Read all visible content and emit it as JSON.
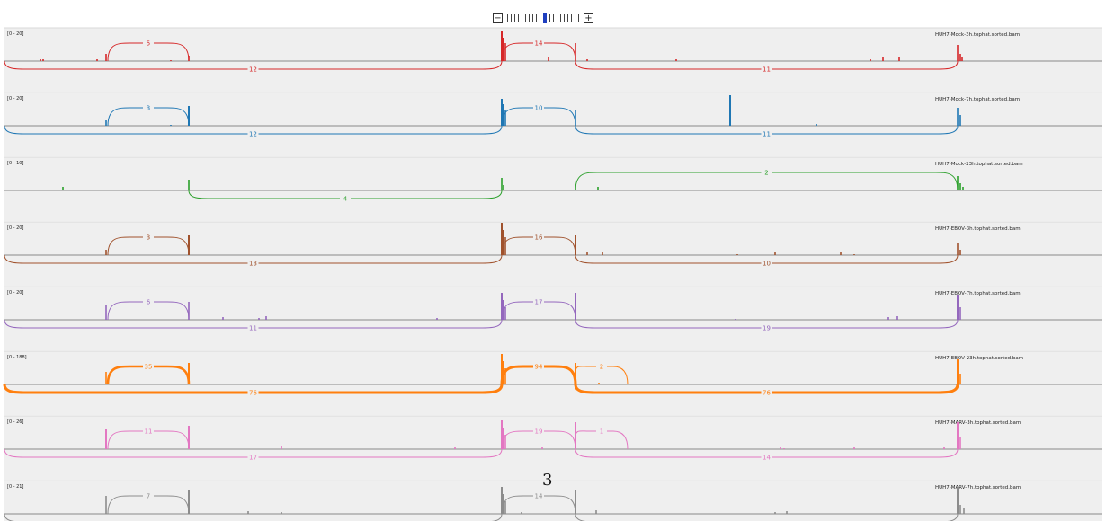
{
  "zoom": {
    "minus_label": "−",
    "plus_label": "+",
    "tick_count": 20,
    "active_tick": 10
  },
  "page_number": "3",
  "tracks": [
    {
      "name": "HUH7-Mock-3h.tophat.sorted.bam",
      "range": "[0 - 20]",
      "color": "#d62728",
      "junctions": [
        {
          "from": 120,
          "to": 210,
          "count": "5",
          "side": "up",
          "weight": 1
        },
        {
          "from": 5,
          "to": 558,
          "count": "12",
          "side": "down",
          "weight": 1
        },
        {
          "from": 558,
          "to": 640,
          "count": "14",
          "side": "up",
          "weight": 1
        },
        {
          "from": 640,
          "to": 1065,
          "count": "11",
          "side": "down",
          "weight": 1
        }
      ],
      "bars": [
        [
          45,
          2
        ],
        [
          48,
          2
        ],
        [
          108,
          2
        ],
        [
          118,
          8
        ],
        [
          190,
          1
        ],
        [
          210,
          6
        ],
        [
          558,
          34
        ],
        [
          560,
          26
        ],
        [
          562,
          20
        ],
        [
          610,
          4
        ],
        [
          640,
          20
        ],
        [
          653,
          2
        ],
        [
          752,
          2
        ],
        [
          968,
          2
        ],
        [
          982,
          4
        ],
        [
          1000,
          5
        ],
        [
          1065,
          18
        ],
        [
          1068,
          8
        ],
        [
          1070,
          4
        ]
      ]
    },
    {
      "name": "HUH7-Mock-7h.tophat.sorted.bam",
      "range": "[0 - 20]",
      "color": "#1f77b4",
      "junctions": [
        {
          "from": 120,
          "to": 210,
          "count": "3",
          "side": "up",
          "weight": 1
        },
        {
          "from": 5,
          "to": 558,
          "count": "12",
          "side": "down",
          "weight": 1
        },
        {
          "from": 558,
          "to": 640,
          "count": "10",
          "side": "up",
          "weight": 1
        },
        {
          "from": 640,
          "to": 1065,
          "count": "11",
          "side": "down",
          "weight": 1
        }
      ],
      "bars": [
        [
          118,
          6
        ],
        [
          190,
          1
        ],
        [
          210,
          22
        ],
        [
          558,
          30
        ],
        [
          560,
          24
        ],
        [
          562,
          18
        ],
        [
          640,
          18
        ],
        [
          812,
          34
        ],
        [
          908,
          2
        ],
        [
          1065,
          20
        ],
        [
          1068,
          12
        ]
      ]
    },
    {
      "name": "HUH7-Mock-23h.tophat.sorted.bam",
      "range": "[0 - 10]",
      "color": "#2ca02c",
      "junctions": [
        {
          "from": 210,
          "to": 558,
          "count": "4",
          "side": "down",
          "weight": 1
        },
        {
          "from": 640,
          "to": 1065,
          "count": "2",
          "side": "up",
          "weight": 1
        }
      ],
      "bars": [
        [
          70,
          4
        ],
        [
          210,
          12
        ],
        [
          558,
          14
        ],
        [
          560,
          6
        ],
        [
          640,
          6
        ],
        [
          665,
          4
        ],
        [
          1065,
          16
        ],
        [
          1068,
          8
        ],
        [
          1071,
          4
        ]
      ]
    },
    {
      "name": "HUH7-EBOV-3h.tophat.sorted.bam",
      "range": "[0 - 20]",
      "color": "#a0522d",
      "junctions": [
        {
          "from": 120,
          "to": 210,
          "count": "3",
          "side": "up",
          "weight": 1
        },
        {
          "from": 5,
          "to": 558,
          "count": "13",
          "side": "down",
          "weight": 1
        },
        {
          "from": 558,
          "to": 640,
          "count": "16",
          "side": "up",
          "weight": 1
        },
        {
          "from": 640,
          "to": 1065,
          "count": "10",
          "side": "down",
          "weight": 1
        }
      ],
      "bars": [
        [
          118,
          6
        ],
        [
          210,
          22
        ],
        [
          558,
          36
        ],
        [
          560,
          28
        ],
        [
          562,
          20
        ],
        [
          640,
          22
        ],
        [
          653,
          3
        ],
        [
          670,
          3
        ],
        [
          820,
          1
        ],
        [
          862,
          3
        ],
        [
          935,
          3
        ],
        [
          950,
          1
        ],
        [
          1065,
          14
        ],
        [
          1068,
          6
        ]
      ]
    },
    {
      "name": "HUH7-EBOV-7h.tophat.sorted.bam",
      "range": "[0 - 20]",
      "color": "#9467bd",
      "junctions": [
        {
          "from": 120,
          "to": 210,
          "count": "6",
          "side": "up",
          "weight": 1
        },
        {
          "from": 5,
          "to": 558,
          "count": "11",
          "side": "down",
          "weight": 1
        },
        {
          "from": 558,
          "to": 640,
          "count": "17",
          "side": "up",
          "weight": 1
        },
        {
          "from": 640,
          "to": 1065,
          "count": "19",
          "side": "down",
          "weight": 1
        }
      ],
      "bars": [
        [
          118,
          16
        ],
        [
          210,
          20
        ],
        [
          248,
          3
        ],
        [
          288,
          2
        ],
        [
          296,
          4
        ],
        [
          486,
          2
        ],
        [
          558,
          30
        ],
        [
          560,
          22
        ],
        [
          562,
          14
        ],
        [
          640,
          30
        ],
        [
          818,
          1
        ],
        [
          988,
          3
        ],
        [
          998,
          4
        ],
        [
          1065,
          28
        ],
        [
          1068,
          14
        ]
      ]
    },
    {
      "name": "HUH7-EBOV-23h.tophat.sorted.bam",
      "range": "[0 - 188]",
      "color": "#ff7f0e",
      "junctions": [
        {
          "from": 120,
          "to": 210,
          "count": "35",
          "side": "up",
          "weight": 2.6
        },
        {
          "from": 5,
          "to": 558,
          "count": "76",
          "side": "down",
          "weight": 3
        },
        {
          "from": 558,
          "to": 640,
          "count": "94",
          "side": "up",
          "weight": 3
        },
        {
          "from": 640,
          "to": 698,
          "count": "2",
          "side": "up",
          "weight": 1
        },
        {
          "from": 640,
          "to": 1065,
          "count": "76",
          "side": "down",
          "weight": 3
        }
      ],
      "bars": [
        [
          118,
          14
        ],
        [
          210,
          24
        ],
        [
          558,
          34
        ],
        [
          560,
          26
        ],
        [
          562,
          18
        ],
        [
          640,
          24
        ],
        [
          666,
          2
        ],
        [
          1065,
          28
        ],
        [
          1068,
          12
        ]
      ]
    },
    {
      "name": "HUH7-MARV-3h.tophat.sorted.bam",
      "range": "[0 - 26]",
      "color": "#e377c2",
      "junctions": [
        {
          "from": 120,
          "to": 210,
          "count": "11",
          "side": "up",
          "weight": 1
        },
        {
          "from": 5,
          "to": 558,
          "count": "17",
          "side": "down",
          "weight": 1
        },
        {
          "from": 558,
          "to": 640,
          "count": "19",
          "side": "up",
          "weight": 1
        },
        {
          "from": 640,
          "to": 698,
          "count": "1",
          "side": "up",
          "weight": 1
        },
        {
          "from": 640,
          "to": 1065,
          "count": "14",
          "side": "down",
          "weight": 1
        }
      ],
      "bars": [
        [
          118,
          22
        ],
        [
          210,
          26
        ],
        [
          313,
          3
        ],
        [
          506,
          2
        ],
        [
          558,
          32
        ],
        [
          560,
          24
        ],
        [
          562,
          16
        ],
        [
          603,
          2
        ],
        [
          640,
          30
        ],
        [
          868,
          2
        ],
        [
          872,
          1
        ],
        [
          950,
          2
        ],
        [
          1050,
          2
        ],
        [
          1065,
          30
        ],
        [
          1068,
          14
        ]
      ]
    },
    {
      "name": "HUH7-MARV-7h.tophat.sorted.bam",
      "range": "[0 - 21]",
      "color": "#8c8c8c",
      "junctions": [
        {
          "from": 120,
          "to": 210,
          "count": "7",
          "side": "up",
          "weight": 1
        },
        {
          "from": 5,
          "to": 558,
          "count": "",
          "side": "down",
          "weight": 1
        },
        {
          "from": 558,
          "to": 640,
          "count": "14",
          "side": "up",
          "weight": 1
        },
        {
          "from": 640,
          "to": 1065,
          "count": "",
          "side": "down",
          "weight": 1
        }
      ],
      "bars": [
        [
          118,
          20
        ],
        [
          210,
          26
        ],
        [
          276,
          3
        ],
        [
          313,
          2
        ],
        [
          558,
          30
        ],
        [
          560,
          22
        ],
        [
          562,
          14
        ],
        [
          580,
          2
        ],
        [
          640,
          26
        ],
        [
          663,
          4
        ],
        [
          862,
          2
        ],
        [
          875,
          3
        ],
        [
          1065,
          30
        ],
        [
          1068,
          10
        ],
        [
          1072,
          6
        ]
      ]
    }
  ]
}
